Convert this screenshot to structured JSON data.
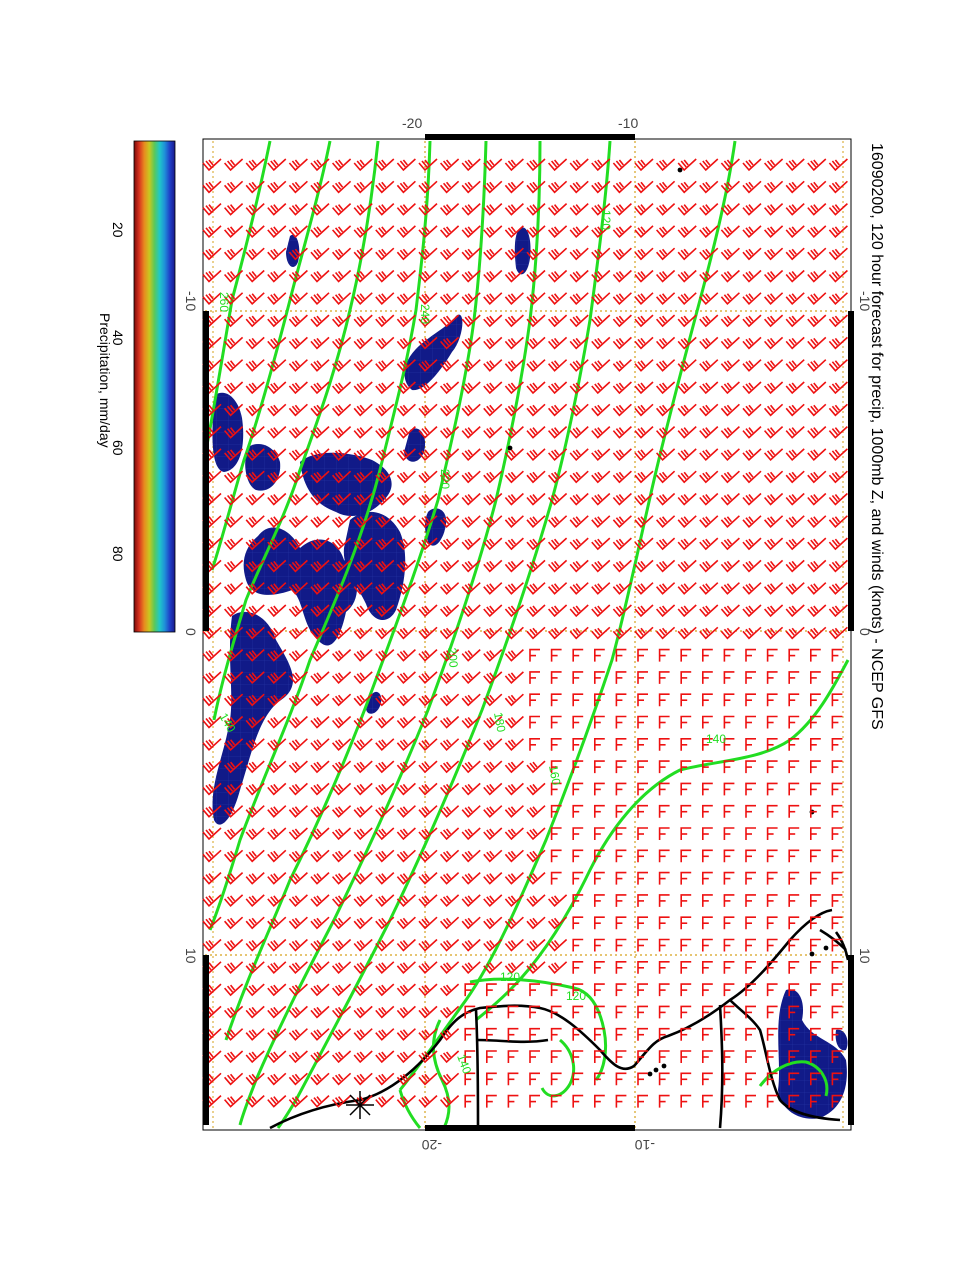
{
  "title": "16090200, 120 hour forecast for precip, 1000mb Z, and winds (knots) - NCEP GFS",
  "colorbar": {
    "label": "Precipitation, mm/day",
    "ticks": [
      "20",
      "40",
      "60",
      "80"
    ],
    "stops": [
      "#1a1a8a",
      "#1f3fc8",
      "#1f8fd8",
      "#1fc8c8",
      "#5ac85a",
      "#c8c81f",
      "#e88a1f",
      "#d8321f",
      "#7a0a0a"
    ]
  },
  "axes": {
    "lat_ticks": [
      "-20",
      "-10"
    ],
    "lon_ticks": [
      "-10",
      "0",
      "10"
    ]
  },
  "contour_labels": [
    "120",
    "140",
    "160",
    "180",
    "200",
    "220",
    "240",
    "260"
  ],
  "colors": {
    "contour": "#22dd22",
    "wind": "#ee1111",
    "precip": "#111a88",
    "coast": "#000000",
    "grid": "#d6a21e"
  }
}
